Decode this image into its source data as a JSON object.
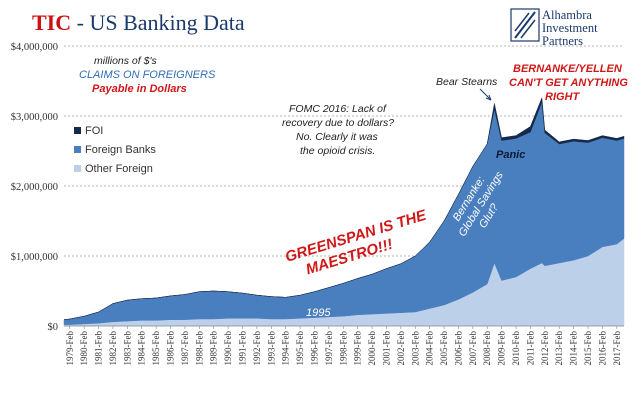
{
  "header": {
    "title_tic": "TIC",
    "title_rest": " - US Banking Data",
    "brand": [
      "Alhambra",
      "Investment",
      "Partners"
    ]
  },
  "colors": {
    "foi": "#16294a",
    "foreign_banks": "#4a7fbf",
    "other_foreign": "#bcd0ea",
    "title_red": "#cc1111",
    "annotation_red": "#d01818",
    "annotation_blue": "#2f6db3"
  },
  "chart_data": {
    "type": "area",
    "stacked": true,
    "subtitle_lines": [
      "millions of $'s",
      "CLAIMS ON FOREIGNERS",
      "Payable in Dollars"
    ],
    "x_tick_labels": [
      "1979-Feb",
      "1980-Feb",
      "1981-Feb",
      "1982-Feb",
      "1983-Feb",
      "1984-Feb",
      "1985-Feb",
      "1986-Feb",
      "1987-Feb",
      "1988-Feb",
      "1989-Feb",
      "1990-Feb",
      "1991-Feb",
      "1992-Feb",
      "1993-Feb",
      "1994-Feb",
      "1995-Feb",
      "1996-Feb",
      "1997-Feb",
      "1998-Feb",
      "1999-Feb",
      "2000-Feb",
      "2001-Feb",
      "2002-Feb",
      "2003-Feb",
      "2004-Feb",
      "2005-Feb",
      "2006-Feb",
      "2007-Feb",
      "2008-Feb",
      "2009-Feb",
      "2010-Feb",
      "2011-Feb",
      "2012-Feb",
      "2013-Feb",
      "2014-Feb",
      "2015-Feb",
      "2016-Feb",
      "2017-Feb"
    ],
    "y_tick_labels": [
      "$0",
      "$1,000,000",
      "$2,000,000",
      "$3,000,000",
      "$4,000,000"
    ],
    "ylim": [
      0,
      4000000
    ],
    "grid": true,
    "legend_position": "left",
    "x": [
      1978.6,
      1979,
      1980,
      1981,
      1982,
      1983,
      1984,
      1985,
      1986,
      1987,
      1988,
      1989,
      1990,
      1991,
      1992,
      1993,
      1994,
      1995,
      1996,
      1997,
      1998,
      1999,
      2000,
      2001,
      2002,
      2003,
      2004,
      2005,
      2006,
      2007,
      2008,
      2008.5,
      2009,
      2010,
      2011,
      2011.8,
      2012,
      2013,
      2014,
      2015,
      2016,
      2017,
      2017.5
    ],
    "series": [
      {
        "name": "FOI",
        "values": [
          0,
          0,
          0,
          0,
          0,
          0,
          0,
          0,
          0,
          0,
          0,
          0,
          0,
          0,
          0,
          0,
          0,
          0,
          0,
          0,
          0,
          0,
          0,
          0,
          0,
          0,
          0,
          0,
          0,
          0,
          0,
          80000,
          40000,
          40000,
          80000,
          60000,
          40000,
          30000,
          30000,
          30000,
          30000,
          30000,
          30000
        ]
      },
      {
        "name": "Foreign Banks",
        "values": [
          70000,
          80000,
          110000,
          160000,
          260000,
          300000,
          310000,
          320000,
          340000,
          360000,
          390000,
          400000,
          380000,
          360000,
          330000,
          320000,
          310000,
          330000,
          370000,
          420000,
          470000,
          520000,
          570000,
          640000,
          700000,
          800000,
          950000,
          1200000,
          1500000,
          1800000,
          2000000,
          2200000,
          2000000,
          1980000,
          1950000,
          2300000,
          1900000,
          1700000,
          1700000,
          1620000,
          1560000,
          1480000,
          1430000
        ]
      },
      {
        "name": "Other Foreign",
        "values": [
          20000,
          20000,
          30000,
          40000,
          60000,
          70000,
          80000,
          80000,
          90000,
          90000,
          100000,
          100000,
          110000,
          110000,
          110000,
          100000,
          100000,
          110000,
          120000,
          130000,
          140000,
          160000,
          170000,
          180000,
          190000,
          200000,
          250000,
          300000,
          380000,
          480000,
          600000,
          900000,
          650000,
          700000,
          820000,
          900000,
          860000,
          900000,
          940000,
          1000000,
          1130000,
          1170000,
          1250000
        ]
      }
    ]
  },
  "annotations": {
    "fomc": [
      "FOMC 2016: Lack of",
      "recovery due to dollars?",
      "No. Clearly it was",
      "the opioid crisis."
    ],
    "bear_stearns": "Bear Stearns",
    "bernanke_yellen": [
      "BERNANKE/YELLEN",
      "CAN'T GET ANYTHING",
      "RIGHT"
    ],
    "panic": "Panic",
    "greenspan": [
      "GREENSPAN IS THE",
      "MAESTRO!!!"
    ],
    "glut": [
      "Bernanke:",
      "Global Savings",
      "Glut?"
    ],
    "year_1995": "1995"
  }
}
